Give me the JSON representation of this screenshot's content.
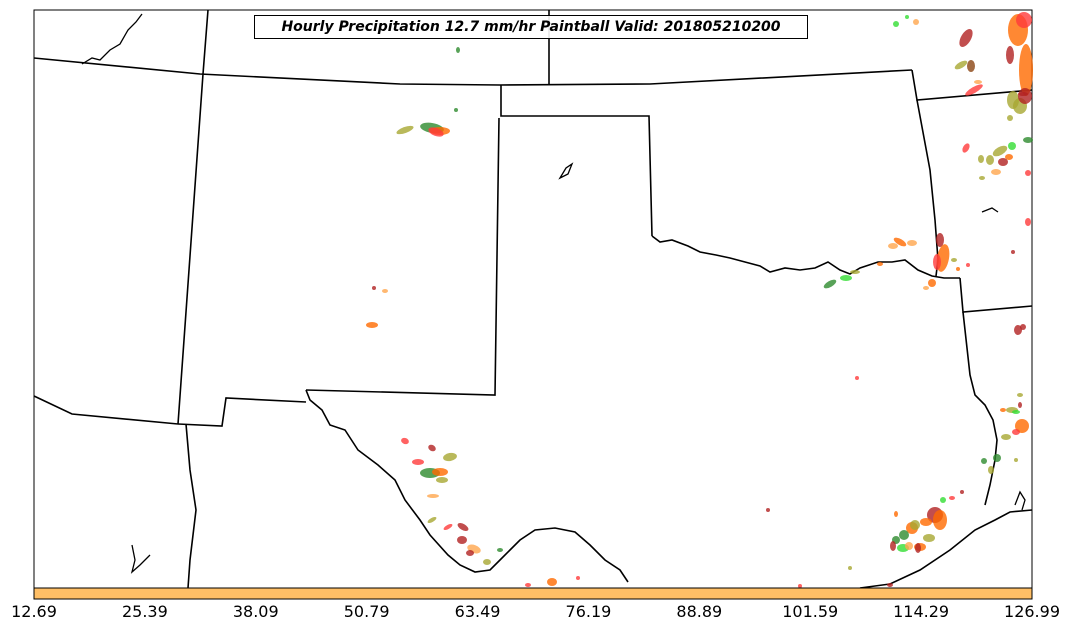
{
  "title": "Hourly Precipitation 12.7 mm/hr Paintball Valid: 201805210200",
  "colorbar": {
    "color": "#ffbf66",
    "tick_labels": [
      "12.69",
      "25.39",
      "38.09",
      "50.79",
      "63.49",
      "76.19",
      "88.89",
      "101.59",
      "114.29",
      "126.99"
    ]
  },
  "palette": {
    "red": "#ff3b3b",
    "dark_red": "#b22222",
    "orange": "#ff6a00",
    "light_orange": "#ffa64d",
    "olive": "#a8a832",
    "green": "#33dd33",
    "dark_green": "#2e8b2e",
    "brown": "#8b4513"
  }
}
